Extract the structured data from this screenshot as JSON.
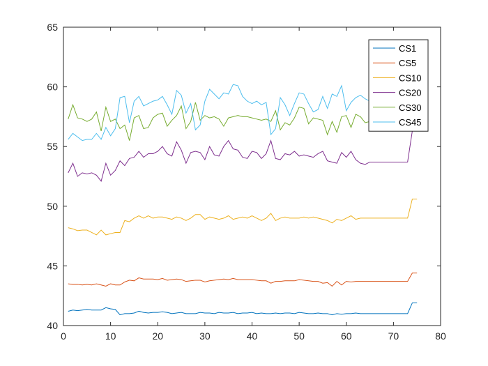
{
  "chart_data": {
    "type": "line",
    "title": "",
    "xlabel": "",
    "ylabel": "",
    "xlim": [
      0,
      80
    ],
    "ylim": [
      40,
      65
    ],
    "xticks": [
      0,
      10,
      20,
      30,
      40,
      50,
      60,
      70,
      80
    ],
    "yticks": [
      40,
      45,
      50,
      55,
      60,
      65
    ],
    "grid": false,
    "legend_position": "top-right",
    "x": [
      1,
      2,
      3,
      4,
      5,
      6,
      7,
      8,
      9,
      10,
      11,
      12,
      13,
      14,
      15,
      16,
      17,
      18,
      19,
      20,
      21,
      22,
      23,
      24,
      25,
      26,
      27,
      28,
      29,
      30,
      31,
      32,
      33,
      34,
      35,
      36,
      37,
      38,
      39,
      40,
      41,
      42,
      43,
      44,
      45,
      46,
      47,
      48,
      49,
      50,
      51,
      52,
      53,
      54,
      55,
      56,
      57,
      58,
      59,
      60,
      61,
      62,
      63,
      64,
      65,
      66,
      67,
      68,
      69,
      70,
      71,
      72,
      73,
      74,
      75
    ],
    "series": [
      {
        "name": "CS1",
        "color": "#0072BD",
        "values": [
          41.2,
          41.3,
          41.25,
          41.3,
          41.35,
          41.3,
          41.3,
          41.3,
          41.5,
          41.4,
          41.35,
          40.9,
          41.0,
          41.0,
          41.05,
          41.2,
          41.1,
          41.05,
          41.1,
          41.1,
          41.15,
          41.1,
          41.0,
          41.05,
          41.1,
          41.0,
          41.0,
          41.0,
          41.1,
          41.05,
          41.05,
          41.0,
          41.1,
          41.05,
          41.05,
          41.1,
          41.0,
          41.05,
          41.05,
          41.1,
          41.0,
          41.05,
          41.0,
          41.0,
          41.05,
          41.0,
          41.05,
          41.05,
          41.0,
          41.1,
          41.05,
          41.0,
          41.0,
          41.05,
          41.0,
          41.0,
          40.9,
          41.0,
          40.95,
          41.0,
          41.0,
          41.05,
          41.0,
          41.0,
          41.0,
          41.0,
          41.0,
          41.0,
          41.0,
          41.0,
          41.0,
          41.0,
          41.0,
          41.9,
          41.9
        ]
      },
      {
        "name": "CS5",
        "color": "#D95319",
        "values": [
          43.5,
          43.45,
          43.45,
          43.4,
          43.45,
          43.4,
          43.5,
          43.4,
          43.3,
          43.5,
          43.4,
          43.4,
          43.65,
          43.8,
          43.75,
          44.0,
          43.9,
          43.9,
          43.9,
          43.85,
          43.95,
          43.8,
          43.85,
          43.9,
          43.85,
          43.7,
          43.75,
          43.8,
          43.8,
          43.65,
          43.75,
          43.8,
          43.85,
          43.9,
          43.85,
          43.95,
          43.85,
          43.85,
          43.85,
          43.85,
          43.8,
          43.75,
          43.75,
          43.55,
          43.7,
          43.7,
          43.75,
          43.75,
          43.75,
          43.85,
          43.8,
          43.75,
          43.7,
          43.7,
          43.55,
          43.6,
          43.3,
          43.7,
          43.4,
          43.7,
          43.65,
          43.7,
          43.7,
          43.7,
          43.7,
          43.7,
          43.7,
          43.7,
          43.7,
          43.7,
          43.7,
          43.7,
          43.7,
          44.4,
          44.4
        ]
      },
      {
        "name": "CS10",
        "color": "#EDB120",
        "values": [
          48.2,
          48.1,
          47.95,
          48.0,
          48.0,
          47.8,
          47.6,
          48.0,
          47.6,
          47.7,
          47.8,
          47.8,
          48.8,
          48.7,
          49.0,
          49.2,
          49.0,
          49.2,
          49.0,
          49.1,
          49.1,
          49.0,
          48.9,
          49.1,
          49.0,
          48.8,
          49.0,
          49.3,
          49.3,
          48.9,
          49.1,
          49.0,
          48.9,
          49.0,
          49.2,
          48.9,
          49.0,
          49.1,
          49.0,
          49.2,
          49.0,
          48.8,
          49.0,
          49.4,
          48.8,
          49.0,
          49.1,
          49.0,
          49.0,
          49.0,
          49.1,
          49.0,
          49.1,
          49.0,
          48.9,
          48.8,
          48.6,
          48.9,
          48.8,
          49.0,
          49.2,
          48.9,
          49.0,
          49.0,
          49.0,
          49.0,
          49.0,
          49.0,
          49.0,
          49.0,
          49.0,
          49.0,
          49.0,
          50.6,
          50.6
        ]
      },
      {
        "name": "CS20",
        "color": "#7E2F8E",
        "values": [
          52.8,
          53.6,
          52.5,
          52.8,
          52.7,
          52.8,
          52.6,
          52.1,
          53.6,
          52.6,
          53.0,
          53.8,
          53.4,
          54.0,
          54.1,
          54.6,
          54.1,
          54.4,
          54.4,
          54.6,
          55.0,
          54.4,
          54.2,
          55.4,
          54.7,
          53.6,
          54.5,
          54.6,
          54.5,
          53.9,
          55.0,
          54.3,
          54.2,
          55.0,
          55.5,
          54.8,
          54.7,
          54.1,
          54.0,
          54.6,
          54.5,
          54.0,
          54.4,
          55.5,
          54.0,
          53.9,
          54.4,
          54.3,
          54.6,
          54.2,
          54.3,
          54.2,
          54.1,
          54.4,
          54.6,
          53.8,
          53.7,
          53.6,
          54.5,
          54.1,
          54.6,
          53.9,
          53.6,
          53.5,
          53.7,
          53.7,
          53.7,
          53.7,
          53.7,
          53.7,
          53.7,
          53.7,
          53.7,
          56.3,
          56.3
        ]
      },
      {
        "name": "CS30",
        "color": "#77AC30",
        "values": [
          57.3,
          58.5,
          57.4,
          57.3,
          57.1,
          57.3,
          57.9,
          56.3,
          58.3,
          57.1,
          57.3,
          56.5,
          56.8,
          55.5,
          57.4,
          57.6,
          56.5,
          56.6,
          57.4,
          57.7,
          57.8,
          56.7,
          57.2,
          57.6,
          58.4,
          56.5,
          57.1,
          58.7,
          57.2,
          57.6,
          57.4,
          57.5,
          57.3,
          56.7,
          57.4,
          57.5,
          57.6,
          57.5,
          57.5,
          57.4,
          57.3,
          57.2,
          57.3,
          57.1,
          58.0,
          56.4,
          57.0,
          56.8,
          57.4,
          58.3,
          58.2,
          56.9,
          57.4,
          57.3,
          57.2,
          56.0,
          57.1,
          56.2,
          57.5,
          57.6,
          56.6,
          57.7,
          57.5,
          57.0,
          57.1,
          57.0,
          57.0,
          57.0,
          57.0,
          57.0,
          57.0,
          57.0,
          57.0,
          57.0,
          57.0
        ]
      },
      {
        "name": "CS45",
        "color": "#4DBEEE",
        "values": [
          55.6,
          56.1,
          55.8,
          55.5,
          55.6,
          55.6,
          56.1,
          55.6,
          56.6,
          55.9,
          56.5,
          59.1,
          59.2,
          57.0,
          58.8,
          59.2,
          58.4,
          58.6,
          58.8,
          58.9,
          59.2,
          58.5,
          57.7,
          59.7,
          59.3,
          57.8,
          58.6,
          56.4,
          56.8,
          58.8,
          59.8,
          59.4,
          59.0,
          59.5,
          59.4,
          60.2,
          60.1,
          59.2,
          58.8,
          58.6,
          58.8,
          58.5,
          58.7,
          56.0,
          56.5,
          59.1,
          58.5,
          57.6,
          58.6,
          59.5,
          59.4,
          58.6,
          57.9,
          58.1,
          59.2,
          58.2,
          59.4,
          59.2,
          60.1,
          58.0,
          58.7,
          59.1,
          59.3,
          59.0,
          58.8,
          58.8,
          58.8,
          58.8,
          58.8,
          58.8,
          58.8,
          58.8,
          58.8,
          58.8,
          58.8
        ]
      }
    ]
  }
}
